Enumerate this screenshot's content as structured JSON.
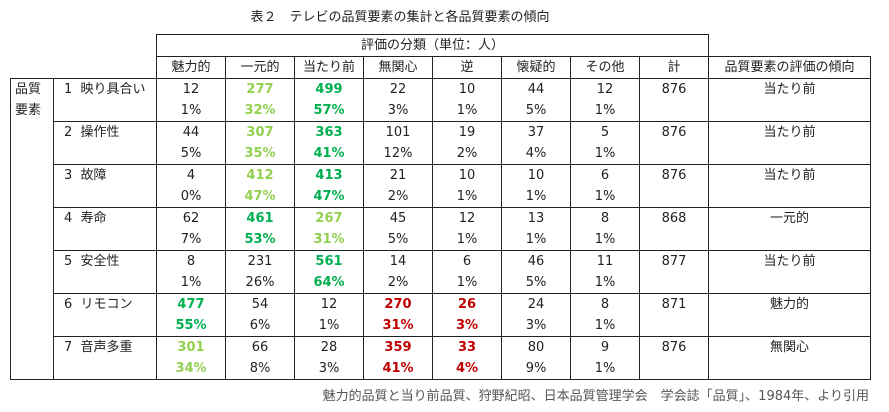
{
  "title": "表２　テレビの品質要素の集計と各品質要素の傾向",
  "header": {
    "group": "評価の分類（単位：人）",
    "row_label": "品質要素",
    "columns": [
      "魅力的",
      "一元的",
      "当たり前",
      "無関心",
      "逆",
      "懐疑的",
      "その他",
      "計"
    ],
    "trend": "品質要素の評価の傾向"
  },
  "colors": {
    "lg": "#92d050",
    "dg": "#00b050",
    "red": "#c00000"
  },
  "rows": [
    {
      "item": "1  映り具合い",
      "cells": [
        [
          "12",
          "1%",
          ""
        ],
        [
          "277",
          "32%",
          "lg"
        ],
        [
          "499",
          "57%",
          "dg"
        ],
        [
          "22",
          "3%",
          ""
        ],
        [
          "10",
          "1%",
          ""
        ],
        [
          "44",
          "5%",
          ""
        ],
        [
          "12",
          "1%",
          ""
        ]
      ],
      "total": "876",
      "trend": "当たり前"
    },
    {
      "item": "2  操作性",
      "cells": [
        [
          "44",
          "5%",
          ""
        ],
        [
          "307",
          "35%",
          "lg"
        ],
        [
          "363",
          "41%",
          "dg"
        ],
        [
          "101",
          "12%",
          ""
        ],
        [
          "19",
          "2%",
          ""
        ],
        [
          "37",
          "4%",
          ""
        ],
        [
          "5",
          "1%",
          ""
        ]
      ],
      "total": "876",
      "trend": "当たり前"
    },
    {
      "item": "3  故障",
      "cells": [
        [
          "4",
          "0%",
          ""
        ],
        [
          "412",
          "47%",
          "lg"
        ],
        [
          "413",
          "47%",
          "dg"
        ],
        [
          "21",
          "2%",
          ""
        ],
        [
          "10",
          "1%",
          ""
        ],
        [
          "10",
          "1%",
          ""
        ],
        [
          "6",
          "1%",
          ""
        ]
      ],
      "total": "876",
      "trend": "当たり前"
    },
    {
      "item": "4  寿命",
      "cells": [
        [
          "62",
          "7%",
          ""
        ],
        [
          "461",
          "53%",
          "dg"
        ],
        [
          "267",
          "31%",
          "lg"
        ],
        [
          "45",
          "5%",
          ""
        ],
        [
          "12",
          "1%",
          ""
        ],
        [
          "13",
          "1%",
          ""
        ],
        [
          "8",
          "1%",
          ""
        ]
      ],
      "total": "868",
      "trend": "一元的"
    },
    {
      "item": "5  安全性",
      "cells": [
        [
          "8",
          "1%",
          ""
        ],
        [
          "231",
          "26%",
          ""
        ],
        [
          "561",
          "64%",
          "dg"
        ],
        [
          "14",
          "2%",
          ""
        ],
        [
          "6",
          "1%",
          ""
        ],
        [
          "46",
          "5%",
          ""
        ],
        [
          "11",
          "1%",
          ""
        ]
      ],
      "total": "877",
      "trend": "当たり前"
    },
    {
      "item": "6  リモコン",
      "cells": [
        [
          "477",
          "55%",
          "dg"
        ],
        [
          "54",
          "6%",
          ""
        ],
        [
          "12",
          "1%",
          ""
        ],
        [
          "270",
          "31%",
          "red"
        ],
        [
          "26",
          "3%",
          "red"
        ],
        [
          "24",
          "3%",
          ""
        ],
        [
          "8",
          "1%",
          ""
        ]
      ],
      "total": "871",
      "trend": "魅力的"
    },
    {
      "item": "7  音声多重",
      "cells": [
        [
          "301",
          "34%",
          "lg"
        ],
        [
          "66",
          "8%",
          ""
        ],
        [
          "28",
          "3%",
          ""
        ],
        [
          "359",
          "41%",
          "red"
        ],
        [
          "33",
          "4%",
          "red"
        ],
        [
          "80",
          "9%",
          ""
        ],
        [
          "9",
          "1%",
          ""
        ]
      ],
      "total": "876",
      "trend": "無関心"
    }
  ],
  "footer": "魅力的品質と当り前品質、狩野紀昭、日本品質管理学会　学会誌「品質」、1984年、より引用"
}
